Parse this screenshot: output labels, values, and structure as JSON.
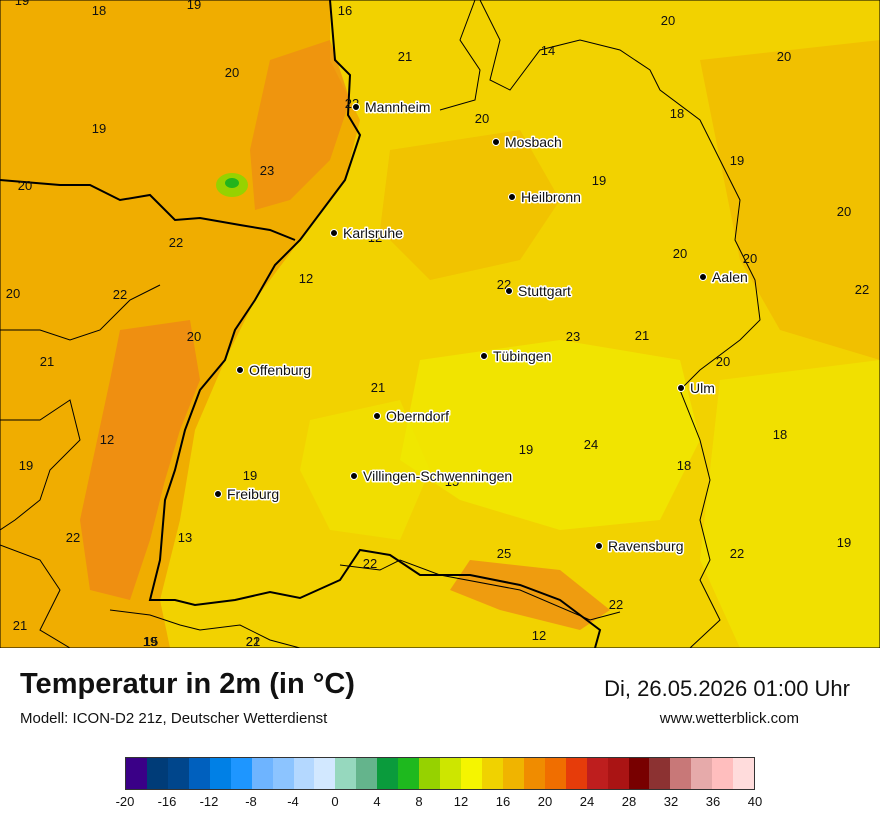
{
  "map": {
    "cities": [
      {
        "name": "Mannheim",
        "icon": "city-dot"
      },
      {
        "name": "Mosbach",
        "icon": "city-dot"
      },
      {
        "name": "Heilbronn",
        "icon": "city-dot"
      },
      {
        "name": "Karlsruhe",
        "icon": "city-dot"
      },
      {
        "name": "Aalen",
        "icon": "city-dot"
      },
      {
        "name": "Stuttgart",
        "icon": "city-dot"
      },
      {
        "name": "Tübingen",
        "icon": "city-dot"
      },
      {
        "name": "Offenburg",
        "icon": "city-dot"
      },
      {
        "name": "Ulm",
        "icon": "city-dot"
      },
      {
        "name": "Oberndorf",
        "icon": "city-dot"
      },
      {
        "name": "Villingen-Schwenningen",
        "icon": "city-dot"
      },
      {
        "name": "Freiburg",
        "icon": "city-dot"
      },
      {
        "name": "Ravensburg",
        "icon": "city-dot"
      }
    ],
    "temperature_labels": [
      "19",
      "18",
      "19",
      "16",
      "21",
      "20",
      "14",
      "20",
      "20",
      "19",
      "22",
      "20",
      "18",
      "19",
      "20",
      "23",
      "19",
      "20",
      "20",
      "22",
      "12",
      "22",
      "12",
      "20",
      "20",
      "22",
      "22",
      "20",
      "23",
      "21",
      "21",
      "20",
      "21",
      "12",
      "19",
      "24",
      "18",
      "18",
      "19",
      "19",
      "15",
      "22",
      "13",
      "25",
      "22",
      "22",
      "19",
      "21",
      "19",
      "22",
      "21",
      "12",
      "15",
      "22"
    ],
    "colors": {
      "base": "#f2d200",
      "warm": "#f0a800",
      "hot": "#ee8a14",
      "cool": "#f0ea00",
      "green_patch": "#22b41c",
      "border": "#000000"
    }
  },
  "footer": {
    "title": "Temperatur in 2m (in °C)",
    "subtitle": "Modell: ICON-D2 21z, Deutscher Wetterdienst",
    "datetime": "Di, 26.05.2026 01:00 Uhr",
    "website": "www.wetterblick.com"
  },
  "legend": {
    "unit": "°C",
    "colors": [
      "#3a0087",
      "#003c78",
      "#00468c",
      "#0060be",
      "#0080e6",
      "#1e96ff",
      "#6eb4ff",
      "#8cc4ff",
      "#b4d8ff",
      "#d2e8ff",
      "#96d8be",
      "#64b48c",
      "#0a9b3c",
      "#1eb91e",
      "#96d200",
      "#cde600",
      "#f5f500",
      "#f0d200",
      "#f0b400",
      "#f08c00",
      "#f06e00",
      "#e63c0a",
      "#be1e1e",
      "#aa1414",
      "#780000",
      "#8c3232",
      "#c87878",
      "#e6aaaa",
      "#ffbebe",
      "#ffdcdc"
    ],
    "ticks": [
      "-20",
      "-16",
      "-12",
      "-8",
      "-4",
      "0",
      "4",
      "8",
      "12",
      "16",
      "20",
      "24",
      "28",
      "32",
      "36",
      "40"
    ]
  }
}
